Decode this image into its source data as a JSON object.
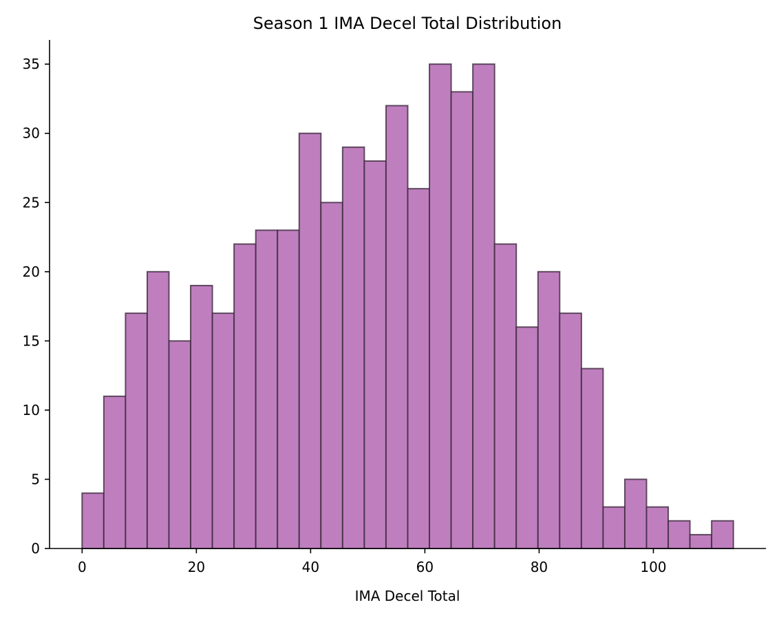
{
  "chart_data": {
    "type": "bar",
    "title": "Season 1 IMA Decel Total Distribution",
    "xlabel": "IMA Decel Total",
    "ylabel": "",
    "bin_range": [
      0,
      114
    ],
    "bin_count": 30,
    "values": [
      4,
      11,
      17,
      20,
      15,
      19,
      17,
      22,
      23,
      23,
      30,
      25,
      29,
      28,
      32,
      26,
      35,
      33,
      35,
      22,
      16,
      20,
      17,
      13,
      3,
      5,
      3,
      2,
      1,
      2
    ],
    "xlim": [
      -5.7,
      119.7
    ],
    "ylim": [
      0,
      36.75
    ],
    "xticks": [
      0,
      20,
      40,
      60,
      80,
      100
    ],
    "yticks": [
      0,
      5,
      10,
      15,
      20,
      25,
      30,
      35
    ],
    "bar_color": "#bf7fbf",
    "edge_color": "#3f2a3f",
    "grid": false,
    "legend": "none"
  }
}
